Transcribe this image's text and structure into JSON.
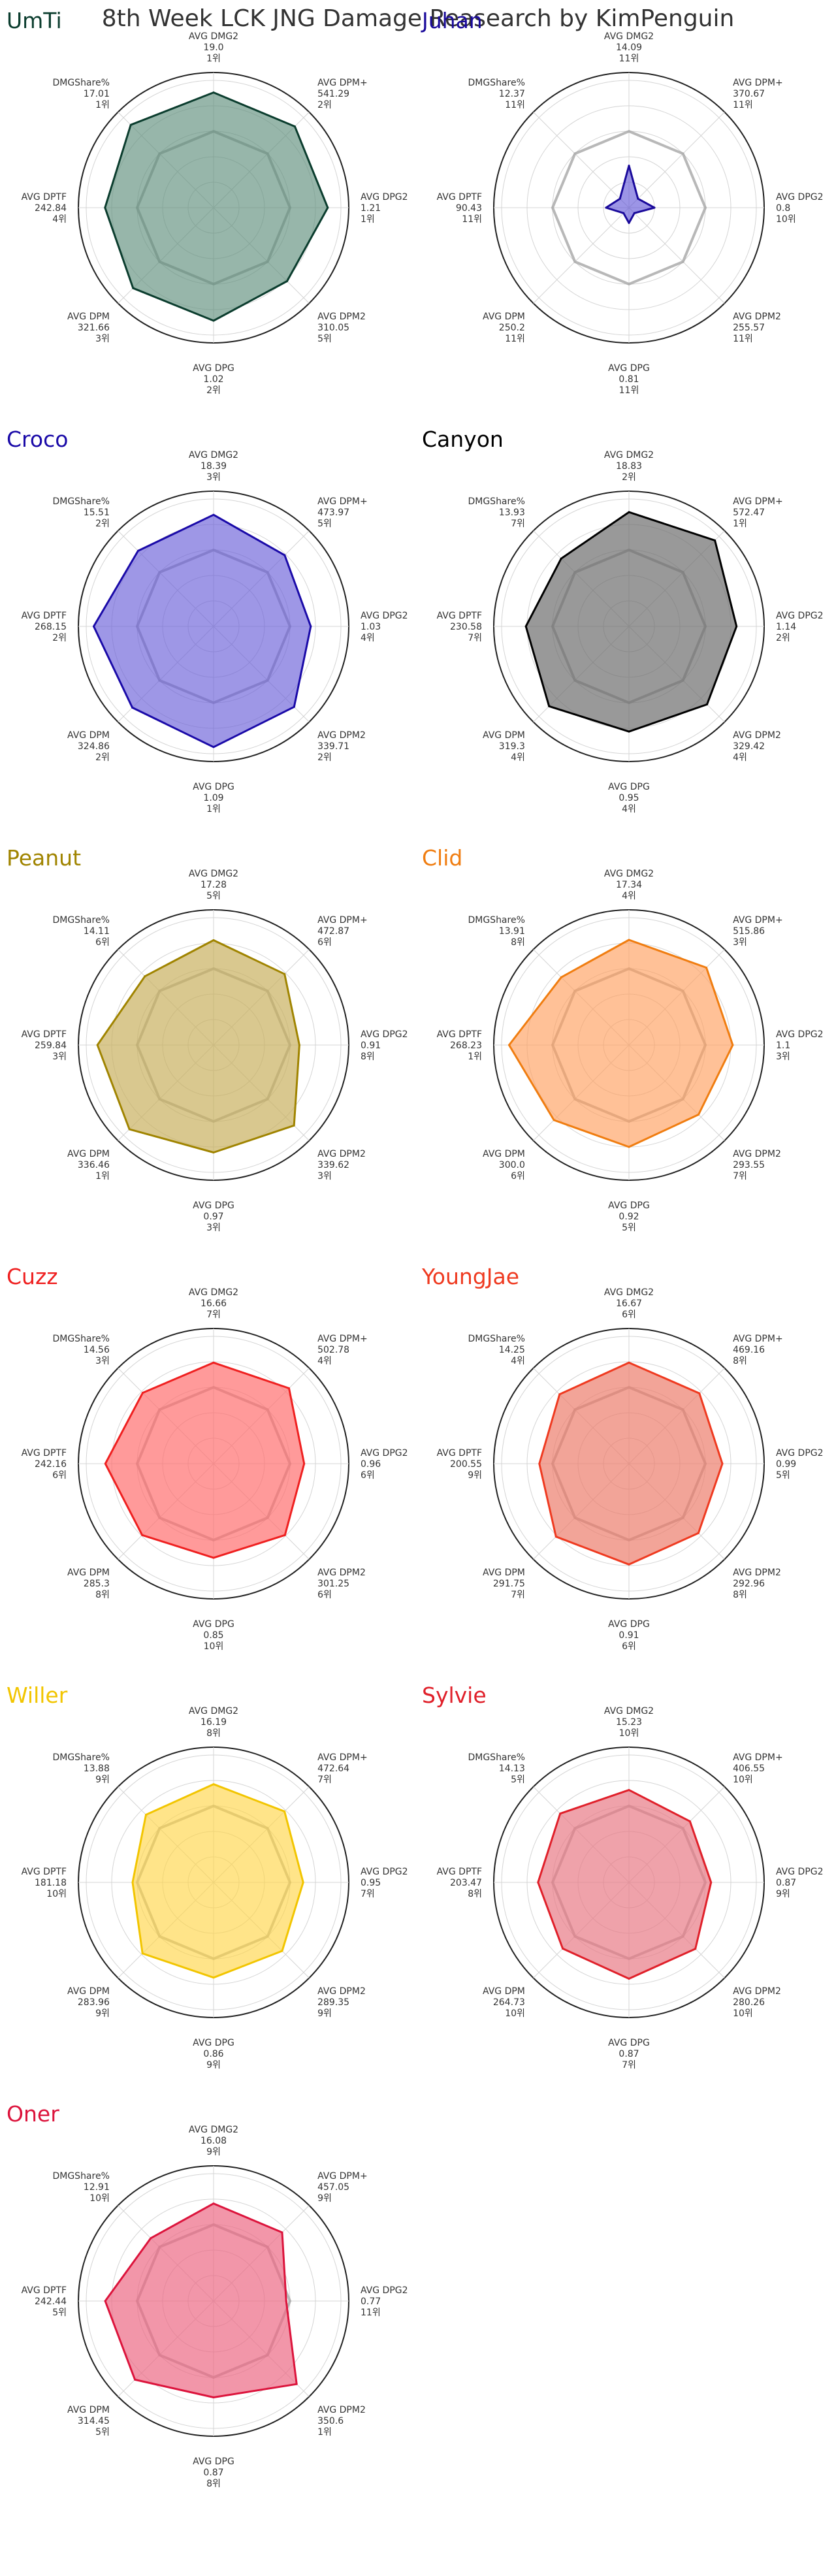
{
  "title": "8th Week LCK JNG Damage Reasearch by KimPenguin",
  "chart_data": {
    "type": "radar",
    "axes": [
      "AVG DMG2",
      "AVG DPM+",
      "AVG DPG2",
      "AVG DPM2",
      "AVG DPG",
      "AVG DPM",
      "AVG DPTF",
      "DMGShare%"
    ],
    "axis_max": [
      21.0,
      600,
      1.35,
      380,
      1.15,
      360,
      285,
      18.5
    ],
    "grid": true,
    "grid_levels": 5,
    "reference_fraction": 0.6,
    "players": [
      {
        "name": "UmTi",
        "color": "#0b3d2e",
        "fill": "#5f8f7c",
        "fill_opacity": 0.65,
        "values": [
          19.0,
          541.29,
          1.21,
          310.05,
          1.02,
          321.66,
          242.84,
          17.01
        ],
        "labels": [
          "19.0",
          "541.29",
          "1.21",
          "310.05",
          "1.02",
          "321.66",
          "242.84",
          "17.01"
        ],
        "ranks": [
          "1위",
          "2위",
          "1위",
          "5위",
          "2위",
          "3위",
          "4위",
          "1위"
        ]
      },
      {
        "name": "Juhan",
        "color": "#1a0a9b",
        "fill": "#5a4fd6",
        "fill_opacity": 0.6,
        "values": [
          14.09,
          370.67,
          0.8,
          255.57,
          0.81,
          250.2,
          90.43,
          12.37
        ],
        "labels": [
          "14.09",
          "370.67",
          "0.8",
          "255.57",
          "0.81",
          "250.2",
          "90.43",
          "12.37"
        ],
        "ranks": [
          "11위",
          "11위",
          "10위",
          "11위",
          "11위",
          "11위",
          "11위",
          "11위"
        ],
        "shape_fraction": [
          0.33,
          0.1,
          0.2,
          0.06,
          0.12,
          0.06,
          0.18,
          0.1
        ]
      },
      {
        "name": "Croco",
        "color": "#1a0aa8",
        "fill": "#6a5fd8",
        "fill_opacity": 0.65,
        "values": [
          18.39,
          473.97,
          1.03,
          339.71,
          1.09,
          324.86,
          268.15,
          15.51
        ],
        "labels": [
          "18.39",
          "473.97",
          "1.03",
          "339.71",
          "1.09",
          "324.86",
          "268.15",
          "15.51"
        ],
        "ranks": [
          "3위",
          "5위",
          "4위",
          "2위",
          "1위",
          "2위",
          "2위",
          "2위"
        ]
      },
      {
        "name": "Canyon",
        "color": "#000000",
        "fill": "#6e6e6e",
        "fill_opacity": 0.7,
        "values": [
          18.83,
          572.47,
          1.14,
          329.42,
          0.95,
          319.3,
          230.58,
          13.93
        ],
        "labels": [
          "18.83",
          "572.47",
          "1.14",
          "329.42",
          "0.95",
          "319.3",
          "230.58",
          "13.93"
        ],
        "ranks": [
          "2위",
          "1위",
          "2위",
          "4위",
          "4위",
          "4위",
          "7위",
          "7위"
        ]
      },
      {
        "name": "Peanut",
        "color": "#a08400",
        "fill": "#c9b060",
        "fill_opacity": 0.7,
        "values": [
          17.28,
          472.87,
          0.91,
          339.62,
          0.97,
          336.46,
          259.84,
          14.11
        ],
        "labels": [
          "17.28",
          "472.87",
          "0.91",
          "339.62",
          "0.97",
          "336.46",
          "259.84",
          "14.11"
        ],
        "ranks": [
          "5위",
          "6위",
          "8위",
          "3위",
          "3위",
          "1위",
          "3위",
          "6위"
        ]
      },
      {
        "name": "Clid",
        "color": "#f07d10",
        "fill": "#ffa060",
        "fill_opacity": 0.65,
        "values": [
          17.34,
          515.86,
          1.1,
          293.55,
          0.92,
          300.0,
          268.23,
          13.91
        ],
        "labels": [
          "17.34",
          "515.86",
          "1.1",
          "293.55",
          "0.92",
          "300.0",
          "268.23",
          "13.91"
        ],
        "ranks": [
          "4위",
          "3위",
          "3위",
          "7위",
          "5위",
          "6위",
          "1위",
          "8위"
        ]
      },
      {
        "name": "Cuzz",
        "color": "#ef2020",
        "fill": "#ff6f6f",
        "fill_opacity": 0.7,
        "values": [
          16.66,
          502.78,
          0.96,
          301.25,
          0.85,
          285.3,
          242.16,
          14.56
        ],
        "labels": [
          "16.66",
          "502.78",
          "0.96",
          "301.25",
          "0.85",
          "285.3",
          "242.16",
          "14.56"
        ],
        "ranks": [
          "7위",
          "4위",
          "6위",
          "6위",
          "10위",
          "8위",
          "6위",
          "3위"
        ]
      },
      {
        "name": "YoungJae",
        "color": "#ef3a20",
        "fill": "#ec7e6c",
        "fill_opacity": 0.7,
        "values": [
          16.67,
          469.16,
          0.99,
          292.96,
          0.91,
          291.75,
          200.55,
          14.25
        ],
        "labels": [
          "16.67",
          "469.16",
          "0.99",
          "292.96",
          "0.91",
          "291.75",
          "200.55",
          "14.25"
        ],
        "ranks": [
          "6위",
          "8위",
          "5위",
          "8위",
          "6위",
          "7위",
          "9위",
          "4위"
        ]
      },
      {
        "name": "Willer",
        "color": "#f2c500",
        "fill": "#ffd54a",
        "fill_opacity": 0.65,
        "values": [
          16.19,
          472.64,
          0.95,
          289.35,
          0.86,
          283.96,
          181.18,
          13.88
        ],
        "labels": [
          "16.19",
          "472.64",
          "0.95",
          "289.35",
          "0.86",
          "283.96",
          "181.18",
          "13.88"
        ],
        "ranks": [
          "8위",
          "7위",
          "7위",
          "9위",
          "9위",
          "9위",
          "10위",
          "9위"
        ]
      },
      {
        "name": "Sylvie",
        "color": "#e0202a",
        "fill": "#e87a86",
        "fill_opacity": 0.7,
        "values": [
          15.23,
          406.55,
          0.87,
          280.26,
          0.87,
          264.73,
          203.47,
          14.13
        ],
        "labels": [
          "15.23",
          "406.55",
          "0.87",
          "280.26",
          "0.87",
          "264.73",
          "203.47",
          "14.13"
        ],
        "ranks": [
          "10위",
          "10위",
          "9위",
          "10위",
          "7위",
          "10위",
          "8위",
          "5위"
        ]
      },
      {
        "name": "Oner",
        "color": "#dc143c",
        "fill": "#ec6a84",
        "fill_opacity": 0.7,
        "values": [
          16.08,
          457.05,
          0.77,
          350.6,
          0.87,
          314.45,
          242.44,
          12.91
        ],
        "labels": [
          "16.08",
          "457.05",
          "0.77",
          "350.6",
          "0.87",
          "314.45",
          "242.44",
          "12.91"
        ],
        "ranks": [
          "9위",
          "9위",
          "11위",
          "1위",
          "8위",
          "5위",
          "5위",
          "10위"
        ]
      }
    ]
  }
}
